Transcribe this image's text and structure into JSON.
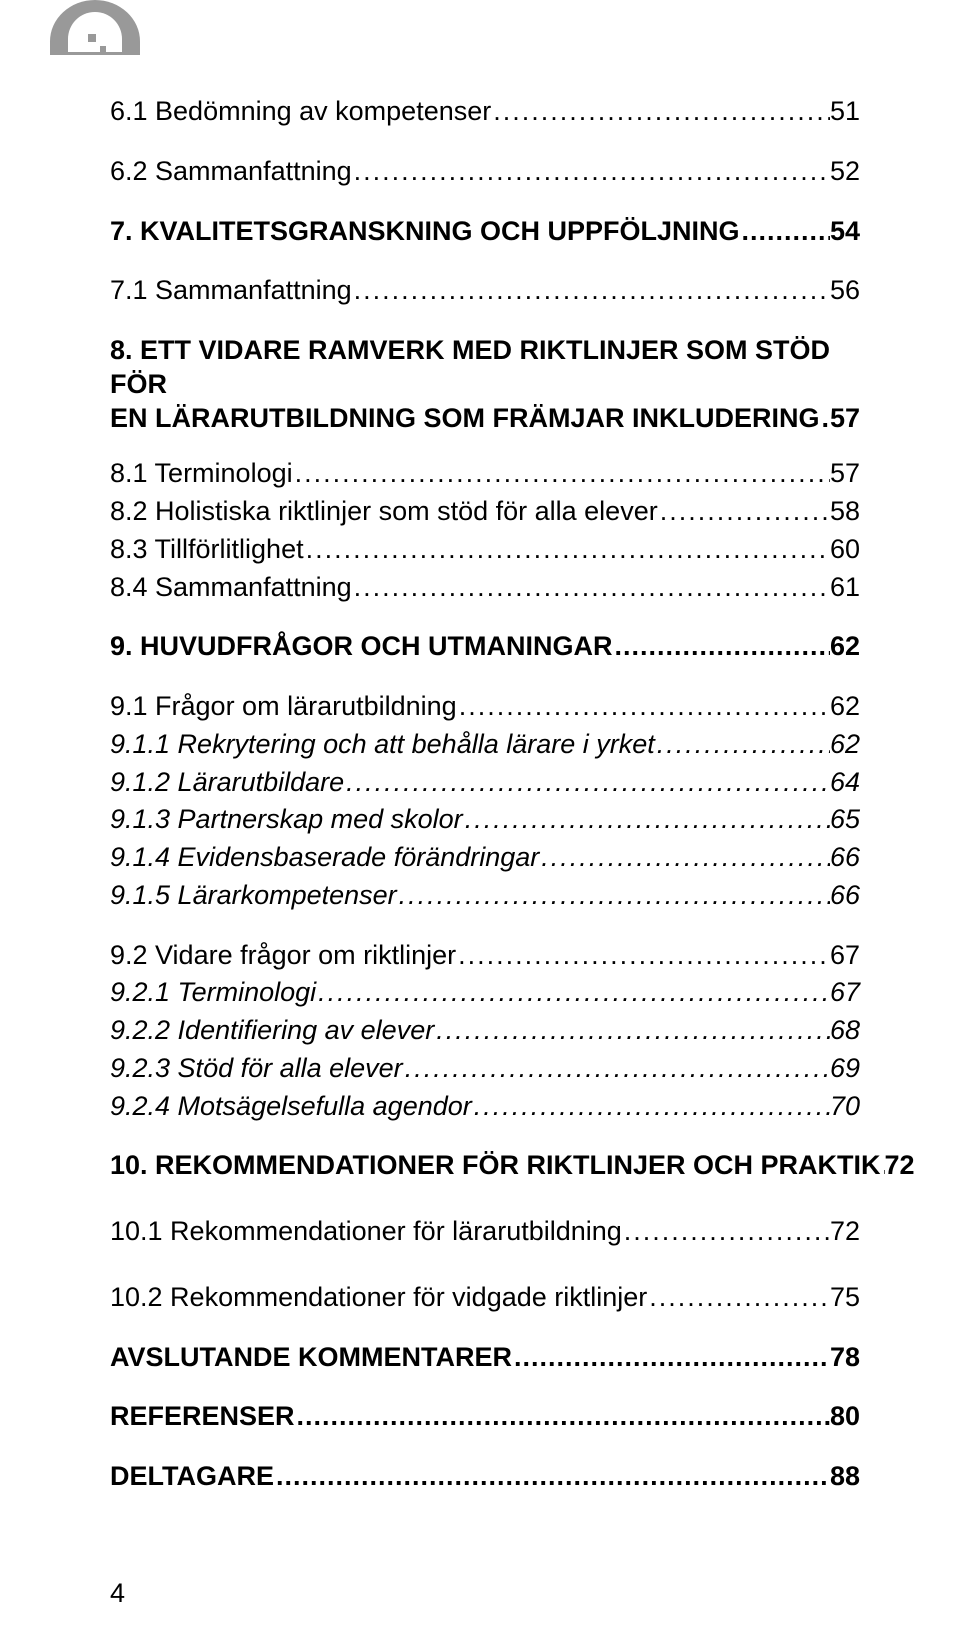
{
  "text_color": "#000000",
  "background_color": "#ffffff",
  "header_graphic_color": "#999999",
  "fontsize_pt": 20,
  "page_number": "4",
  "toc": {
    "s6_1": {
      "label": "6.1 Bedömning av kompetenser",
      "page": "51"
    },
    "s6_2": {
      "label": "6.2 Sammanfattning",
      "page": "52"
    },
    "s7": {
      "label": "7. KVALITETSGRANSKNING OCH UPPFÖLJNING",
      "page": "54"
    },
    "s7_1": {
      "label": "7.1 Sammanfattning",
      "page": "56"
    },
    "s8": {
      "line1": "8. ETT VIDARE RAMVERK MED RIKTLINJER SOM STÖD FÖR",
      "line2": "EN LÄRARUTBILDNING SOM FRÄMJAR INKLUDERING",
      "page": "57"
    },
    "s8_1": {
      "label": "8.1 Terminologi",
      "page": "57"
    },
    "s8_2": {
      "label": "8.2 Holistiska riktlinjer som stöd för alla elever",
      "page": "58"
    },
    "s8_3": {
      "label": "8.3 Tillförlitlighet",
      "page": "60"
    },
    "s8_4": {
      "label": "8.4 Sammanfattning",
      "page": "61"
    },
    "s9": {
      "label": "9. HUVUDFRÅGOR OCH UTMANINGAR",
      "page": "62"
    },
    "s9_1": {
      "label": "9.1 Frågor om lärarutbildning",
      "page": "62"
    },
    "s9_1_1": {
      "label": "9.1.1 Rekrytering och att behålla lärare i yrket",
      "page": "62"
    },
    "s9_1_2": {
      "label": "9.1.2 Lärarutbildare",
      "page": "64"
    },
    "s9_1_3": {
      "label": "9.1.3 Partnerskap med skolor",
      "page": "65"
    },
    "s9_1_4": {
      "label": "9.1.4 Evidensbaserade förändringar",
      "page": "66"
    },
    "s9_1_5": {
      "label": "9.1.5 Lärarkompetenser",
      "page": "66"
    },
    "s9_2": {
      "label": "9.2 Vidare frågor om riktlinjer",
      "page": "67"
    },
    "s9_2_1": {
      "label": "9.2.1 Terminologi",
      "page": "67"
    },
    "s9_2_2": {
      "label": "9.2.2 Identifiering av elever",
      "page": "68"
    },
    "s9_2_3": {
      "label": "9.2.3 Stöd för alla elever",
      "page": "69"
    },
    "s9_2_4": {
      "label": "9.2.4 Motsägelsefulla agendor",
      "page": "70"
    },
    "s10": {
      "label": "10. REKOMMENDATIONER FÖR RIKTLINJER OCH PRAKTIK",
      "page": "72"
    },
    "s10_1": {
      "label": "10.1 Rekommendationer för lärarutbildning",
      "page": "72"
    },
    "s10_2": {
      "label": "10.2 Rekommendationer för vidgade riktlinjer",
      "page": "75"
    },
    "closing": {
      "label": "AVSLUTANDE KOMMENTARER",
      "page": "78"
    },
    "refs": {
      "label": "REFERENSER",
      "page": "80"
    },
    "parts": {
      "label": "DELTAGARE",
      "page": "88"
    }
  }
}
